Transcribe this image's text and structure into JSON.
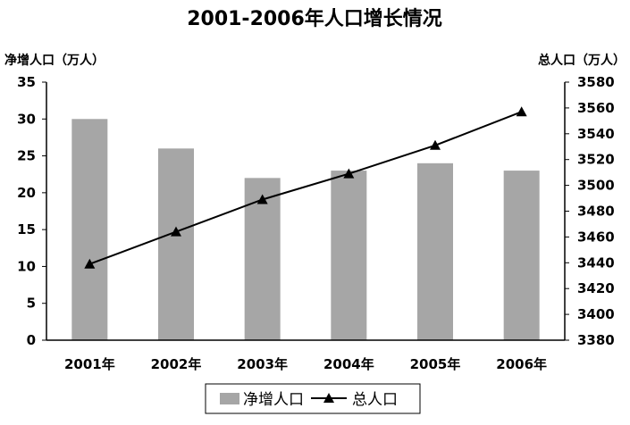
{
  "chart_data": {
    "type": "bar",
    "title": "2001-2006年人口增长情况",
    "ylabel_left": "净增人口（万人）",
    "ylabel_right": "总人口（万人）",
    "categories": [
      "2001年",
      "2002年",
      "2003年",
      "2004年",
      "2005年",
      "2006年"
    ],
    "ylim_left": [
      0,
      35
    ],
    "yticks_left": [
      0,
      5,
      10,
      15,
      20,
      25,
      30,
      35
    ],
    "ylim_right": [
      3380,
      3580
    ],
    "yticks_right": [
      3380,
      3400,
      3420,
      3440,
      3460,
      3480,
      3500,
      3520,
      3540,
      3560,
      3580
    ],
    "series": [
      {
        "name": "净增人口",
        "type": "bar",
        "axis": "left",
        "color": "#a6a6a6",
        "values": [
          30,
          26,
          22,
          23,
          24,
          23
        ]
      },
      {
        "name": "总人口",
        "type": "line",
        "axis": "right",
        "color": "#000000",
        "marker": "triangle",
        "values": [
          3439,
          3464,
          3489,
          3509,
          3531,
          3557
        ]
      }
    ],
    "legend_position": "bottom",
    "grid": false
  }
}
